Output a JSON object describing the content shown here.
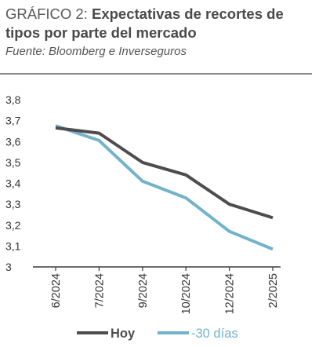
{
  "header": {
    "title_prefix": "GRÁFICO 2: ",
    "title_main": "Expectativas de recortes de tipos por parte del mercado",
    "source": "Fuente: Bloomberg e Inverseguros"
  },
  "colors": {
    "hoy": "#4d4d4f",
    "minus30": "#72b3c9",
    "axis": "#3a3a3a"
  },
  "chart_data": {
    "type": "line",
    "title": "Expectativas de recortes de tipos por parte del mercado",
    "xlabel": "",
    "ylabel": "",
    "categories": [
      "6/2024",
      "7/2024",
      "9/2024",
      "10/2024",
      "12/2024",
      "2/2025"
    ],
    "y_ticks": [
      "3,8",
      "3,7",
      "3,6",
      "3,5",
      "3,4",
      "3,3",
      "3,2",
      "3,1",
      "3"
    ],
    "ylim": [
      3.0,
      3.8
    ],
    "grid": false,
    "legend": "bottom",
    "series": [
      {
        "name": "Hoy",
        "values": [
          3.665,
          3.64,
          3.5,
          3.44,
          3.3,
          3.235
        ]
      },
      {
        "name": "-30 días",
        "values": [
          3.675,
          3.605,
          3.41,
          3.33,
          3.17,
          3.085
        ]
      }
    ]
  }
}
